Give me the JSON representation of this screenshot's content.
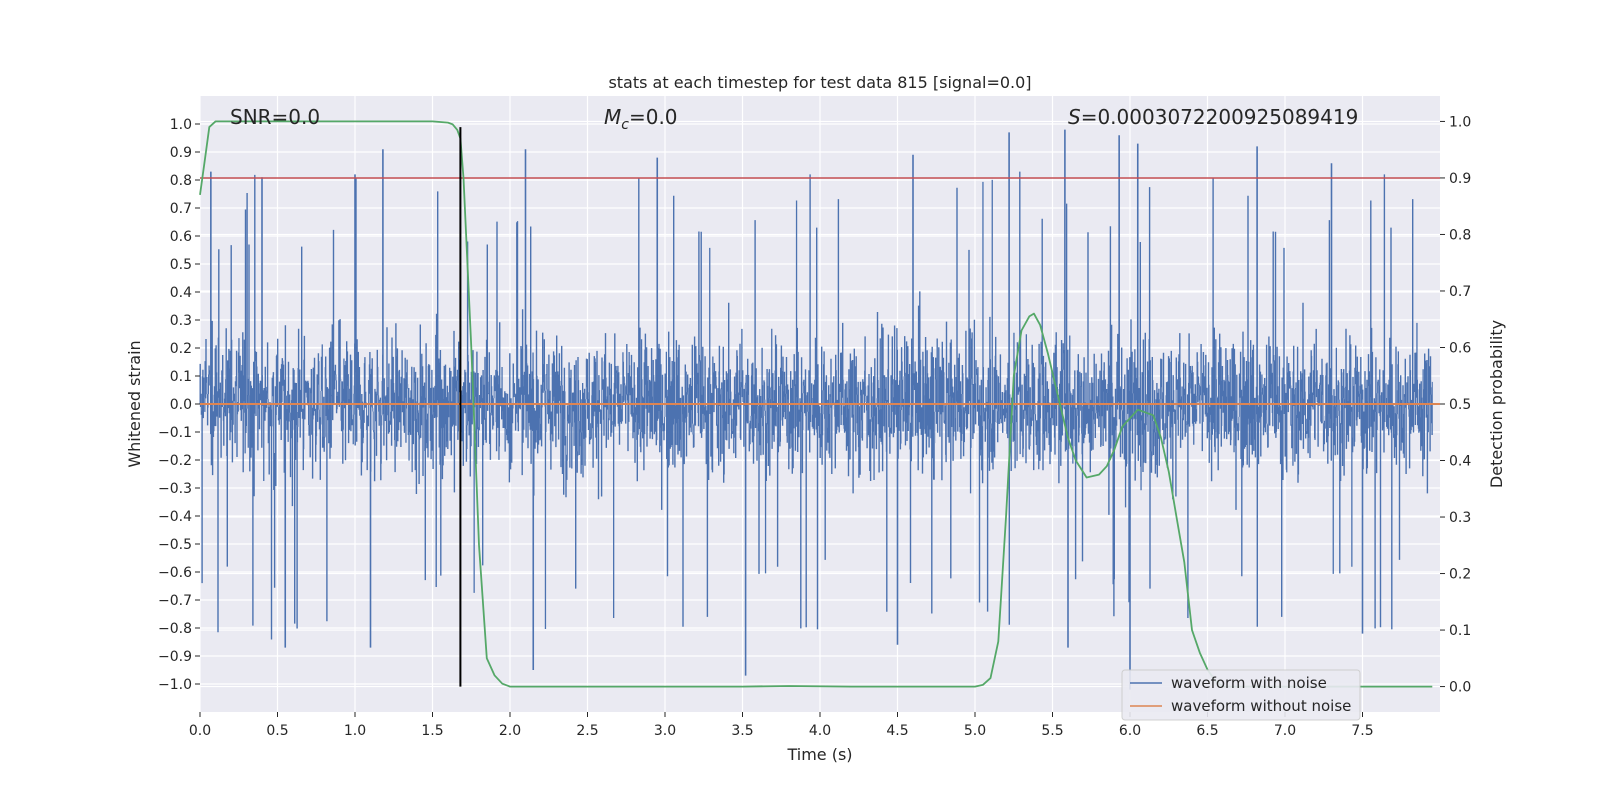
{
  "chart_data": {
    "type": "line",
    "title": "stats at each timestep for test data 815 [signal=0.0]",
    "xlabel": "Time (s)",
    "ylabel_left": "Whitened strain",
    "ylabel_right": "Detection probability",
    "xlim": [
      0.0,
      8.0
    ],
    "ylim_left": [
      -1.1,
      1.1
    ],
    "ylim_right": [
      -0.045,
      1.045
    ],
    "x_ticks": [
      0.0,
      0.5,
      1.0,
      1.5,
      2.0,
      2.5,
      3.0,
      3.5,
      4.0,
      4.5,
      5.0,
      5.5,
      6.0,
      6.5,
      7.0,
      7.5
    ],
    "x_tick_labels": [
      "0.0",
      "0.5",
      "1.0",
      "1.5",
      "2.0",
      "2.5",
      "3.0",
      "3.5",
      "4.0",
      "4.5",
      "5.0",
      "5.5",
      "6.0",
      "6.5",
      "7.0",
      "7.5"
    ],
    "y_left_ticks": [
      1.0,
      0.9,
      0.8,
      0.7,
      0.6,
      0.5,
      0.4,
      0.3,
      0.2,
      0.1,
      0.0,
      -0.1,
      -0.2,
      -0.3,
      -0.4,
      -0.5,
      -0.6,
      -0.7,
      -0.8,
      -0.9,
      -1.0
    ],
    "y_left_tick_labels": [
      "1.0",
      "0.9",
      "0.8",
      "0.7",
      "0.6",
      "0.5",
      "0.4",
      "0.3",
      "0.2",
      "0.1",
      "0.0",
      "−0.1",
      "−0.2",
      "−0.3",
      "−0.4",
      "−0.5",
      "−0.6",
      "−0.7",
      "−0.8",
      "−0.9",
      "−1.0"
    ],
    "y_right_ticks": [
      1.0,
      0.9,
      0.8,
      0.7,
      0.6,
      0.5,
      0.4,
      0.3,
      0.2,
      0.1,
      0.0
    ],
    "y_right_tick_labels": [
      "1.0",
      "0.9",
      "0.8",
      "0.7",
      "0.6",
      "0.5",
      "0.4",
      "0.3",
      "0.2",
      "0.1",
      "0.0"
    ],
    "annotations": {
      "snr": "SNR=0.0",
      "mc_symbol": "M",
      "mc_subscript": "c",
      "mc_value": "=0.0",
      "s_symbol": "S",
      "s_value": "=0.0003072200925089419"
    },
    "threshold": {
      "value_right": 0.9,
      "color": "#c44e52"
    },
    "peak_marker": {
      "x": 1.68,
      "color": "#000000"
    },
    "legend": {
      "position": "lower-right",
      "entries": [
        {
          "label": "waveform with noise",
          "color": "#4c72b0"
        },
        {
          "label": "waveform without noise",
          "color": "#dd8452"
        }
      ]
    },
    "series": [
      {
        "name": "waveform with noise",
        "axis": "left",
        "color": "#4c72b0",
        "kind": "noise",
        "sample_step": 0.0025,
        "envelope_typical": 0.45,
        "notable_peaks": [
          {
            "x": 0.07,
            "y": 0.83
          },
          {
            "x": 0.4,
            "y": 0.81
          },
          {
            "x": 1.0,
            "y": 0.82
          },
          {
            "x": 1.18,
            "y": 0.91
          },
          {
            "x": 2.1,
            "y": 0.91
          },
          {
            "x": 2.95,
            "y": 0.88
          },
          {
            "x": 4.6,
            "y": 0.89
          },
          {
            "x": 5.22,
            "y": 0.97
          },
          {
            "x": 5.58,
            "y": 0.98
          },
          {
            "x": 5.93,
            "y": 0.96
          },
          {
            "x": 6.05,
            "y": 0.93
          },
          {
            "x": 6.82,
            "y": 0.92
          },
          {
            "x": 7.3,
            "y": 0.86
          },
          {
            "x": 0.55,
            "y": -0.87
          },
          {
            "x": 1.1,
            "y": -0.87
          },
          {
            "x": 2.15,
            "y": -0.95
          },
          {
            "x": 3.52,
            "y": -0.97
          },
          {
            "x": 4.5,
            "y": -0.86
          },
          {
            "x": 5.6,
            "y": -0.87
          },
          {
            "x": 6.0,
            "y": -1.02
          },
          {
            "x": 7.5,
            "y": -0.82
          }
        ]
      },
      {
        "name": "waveform without noise",
        "axis": "left",
        "color": "#dd8452",
        "x": [
          0.0,
          8.0
        ],
        "y": [
          0.0,
          0.0
        ]
      },
      {
        "name": "detection probability",
        "axis": "right",
        "color": "#55a868",
        "x": [
          0.0,
          0.03,
          0.06,
          0.1,
          0.2,
          0.4,
          0.8,
          1.2,
          1.5,
          1.6,
          1.63,
          1.66,
          1.68,
          1.7,
          1.75,
          1.8,
          1.85,
          1.9,
          1.95,
          2.0,
          2.5,
          3.0,
          3.5,
          3.8,
          4.2,
          4.5,
          4.9,
          5.0,
          5.05,
          5.1,
          5.15,
          5.2,
          5.25,
          5.3,
          5.35,
          5.38,
          5.42,
          5.47,
          5.53,
          5.6,
          5.65,
          5.72,
          5.8,
          5.85,
          5.9,
          5.95,
          6.05,
          6.15,
          6.2,
          6.25,
          6.3,
          6.35,
          6.4,
          6.45,
          6.5,
          6.55,
          6.6,
          6.7,
          7.0,
          7.5,
          7.95
        ],
        "y": [
          0.87,
          0.93,
          0.99,
          1.0,
          1.0,
          1.0,
          1.0,
          1.0,
          1.0,
          0.998,
          0.995,
          0.985,
          0.97,
          0.9,
          0.6,
          0.25,
          0.05,
          0.02,
          0.005,
          0.0,
          0.0,
          0.0,
          0.0,
          0.001,
          0.0,
          0.0,
          0.0,
          0.0,
          0.003,
          0.015,
          0.08,
          0.3,
          0.55,
          0.63,
          0.655,
          0.66,
          0.64,
          0.59,
          0.52,
          0.44,
          0.4,
          0.37,
          0.375,
          0.39,
          0.42,
          0.46,
          0.49,
          0.48,
          0.44,
          0.38,
          0.3,
          0.22,
          0.1,
          0.06,
          0.03,
          0.01,
          0.0,
          0.0,
          0.0,
          0.0,
          0.0
        ]
      }
    ]
  }
}
